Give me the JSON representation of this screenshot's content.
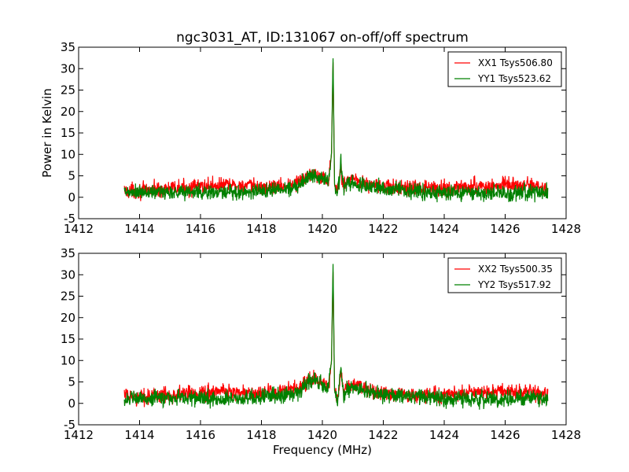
{
  "figure": {
    "title": "ngc3031_AT, ID:131067 on-off/off spectrum"
  },
  "chart_data": [
    {
      "type": "line",
      "title": "ngc3031_AT, ID:131067 on-off/off spectrum",
      "xlabel": "",
      "ylabel": "Power in Kelvin",
      "xlim": [
        1412,
        1428
      ],
      "ylim": [
        -5,
        35
      ],
      "xticks": [
        "1412",
        "1414",
        "1416",
        "1418",
        "1420",
        "1422",
        "1424",
        "1426",
        "1428"
      ],
      "yticks": [
        "-5",
        "0",
        "5",
        "10",
        "15",
        "20",
        "25",
        "30",
        "35"
      ],
      "grid": false,
      "legend_position": "top-right",
      "x": [
        1413.5,
        1414.0,
        1414.5,
        1415.0,
        1415.5,
        1416.0,
        1416.5,
        1417.0,
        1417.5,
        1418.0,
        1418.5,
        1419.0,
        1419.3,
        1419.6,
        1419.8,
        1420.0,
        1420.2,
        1420.3,
        1420.35,
        1420.4,
        1420.5,
        1420.6,
        1420.7,
        1420.8,
        1421.0,
        1421.2,
        1421.5,
        1422.0,
        1422.5,
        1423.0,
        1423.5,
        1424.0,
        1424.5,
        1425.0,
        1425.5,
        1426.0,
        1426.5,
        1427.0,
        1427.4
      ],
      "series": [
        {
          "name": "XX1 Tsys506.80",
          "color": "#ff0000",
          "values": [
            1.5,
            1.5,
            1.8,
            2.0,
            2.2,
            2.5,
            2.8,
            2.8,
            2.6,
            2.3,
            2.5,
            3.0,
            3.8,
            5.5,
            5.8,
            4.5,
            3.8,
            10.0,
            31.5,
            3.0,
            1.0,
            7.0,
            2.5,
            4.0,
            4.5,
            3.8,
            3.0,
            2.5,
            2.2,
            2.0,
            2.0,
            2.0,
            2.2,
            2.5,
            2.5,
            2.8,
            2.8,
            2.5,
            2.0
          ]
        },
        {
          "name": "YY1 Tsys523.62",
          "color": "#008000",
          "values": [
            1.0,
            1.0,
            1.2,
            1.3,
            1.3,
            1.2,
            1.0,
            1.0,
            1.2,
            1.5,
            1.8,
            2.2,
            3.5,
            5.0,
            5.5,
            4.5,
            3.5,
            10.0,
            33.0,
            3.0,
            0.0,
            8.5,
            2.0,
            3.0,
            3.2,
            3.0,
            2.5,
            2.0,
            1.8,
            1.5,
            1.3,
            1.0,
            1.0,
            1.0,
            1.0,
            1.0,
            1.2,
            1.2,
            1.0
          ]
        }
      ]
    },
    {
      "type": "line",
      "title": "",
      "xlabel": "Frequency (MHz)",
      "ylabel": "",
      "xlim": [
        1412,
        1428
      ],
      "ylim": [
        -5,
        35
      ],
      "xticks": [
        "1412",
        "1414",
        "1416",
        "1418",
        "1420",
        "1422",
        "1424",
        "1426",
        "1428"
      ],
      "yticks": [
        "-5",
        "0",
        "5",
        "10",
        "15",
        "20",
        "25",
        "30",
        "35"
      ],
      "grid": false,
      "legend_position": "top-right",
      "x": [
        1413.5,
        1414.0,
        1414.5,
        1415.0,
        1415.5,
        1416.0,
        1416.5,
        1417.0,
        1417.5,
        1418.0,
        1418.5,
        1419.0,
        1419.3,
        1419.6,
        1419.8,
        1420.0,
        1420.2,
        1420.3,
        1420.35,
        1420.4,
        1420.5,
        1420.6,
        1420.7,
        1420.8,
        1421.0,
        1421.2,
        1421.5,
        1422.0,
        1422.5,
        1423.0,
        1423.5,
        1424.0,
        1424.5,
        1425.0,
        1425.5,
        1426.0,
        1426.5,
        1427.0,
        1427.4
      ],
      "series": [
        {
          "name": "XX2 Tsys500.35",
          "color": "#ff0000",
          "values": [
            1.5,
            1.5,
            1.8,
            2.0,
            2.3,
            2.5,
            2.8,
            2.7,
            2.5,
            2.3,
            2.5,
            3.0,
            3.8,
            5.5,
            5.8,
            4.5,
            3.8,
            10.0,
            31.0,
            3.0,
            1.0,
            7.0,
            2.5,
            4.0,
            4.5,
            3.8,
            3.0,
            2.5,
            2.2,
            2.0,
            2.0,
            2.0,
            2.2,
            2.5,
            2.5,
            2.8,
            2.8,
            2.5,
            2.0
          ]
        },
        {
          "name": "YY2 Tsys517.92",
          "color": "#008000",
          "values": [
            1.0,
            1.0,
            1.2,
            1.3,
            1.3,
            1.2,
            1.0,
            1.0,
            1.2,
            1.5,
            1.8,
            2.2,
            3.5,
            5.0,
            5.5,
            4.5,
            3.5,
            10.0,
            33.0,
            3.0,
            0.0,
            8.5,
            2.0,
            3.0,
            3.2,
            3.0,
            2.5,
            2.0,
            1.8,
            1.5,
            1.3,
            1.0,
            1.0,
            1.0,
            1.0,
            1.0,
            1.2,
            1.2,
            1.0
          ]
        }
      ]
    }
  ]
}
